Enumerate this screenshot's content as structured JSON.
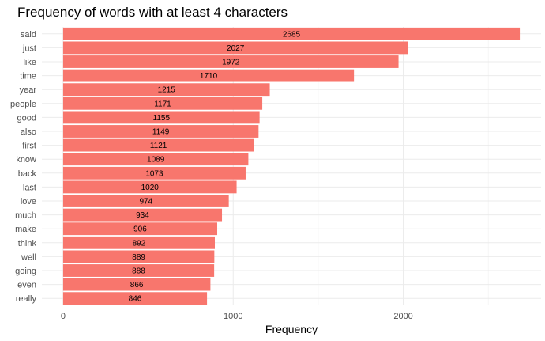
{
  "chart_data": {
    "type": "bar",
    "orientation": "horizontal",
    "title": "Frequency of words with at least 4 characters",
    "xlabel": "Frequency",
    "ylabel": "",
    "categories": [
      "said",
      "just",
      "like",
      "time",
      "year",
      "people",
      "good",
      "also",
      "first",
      "know",
      "back",
      "last",
      "love",
      "much",
      "make",
      "think",
      "well",
      "going",
      "even",
      "really"
    ],
    "values": [
      2685,
      2027,
      1972,
      1710,
      1215,
      1171,
      1155,
      1149,
      1121,
      1089,
      1073,
      1020,
      974,
      934,
      906,
      892,
      889,
      888,
      866,
      846
    ],
    "x_ticks": [
      0,
      1000,
      2000
    ],
    "xlim": [
      -125,
      2810
    ],
    "bar_color": "#F8766D",
    "grid": true,
    "grid_color": "#ebebeb",
    "legend": "none"
  }
}
